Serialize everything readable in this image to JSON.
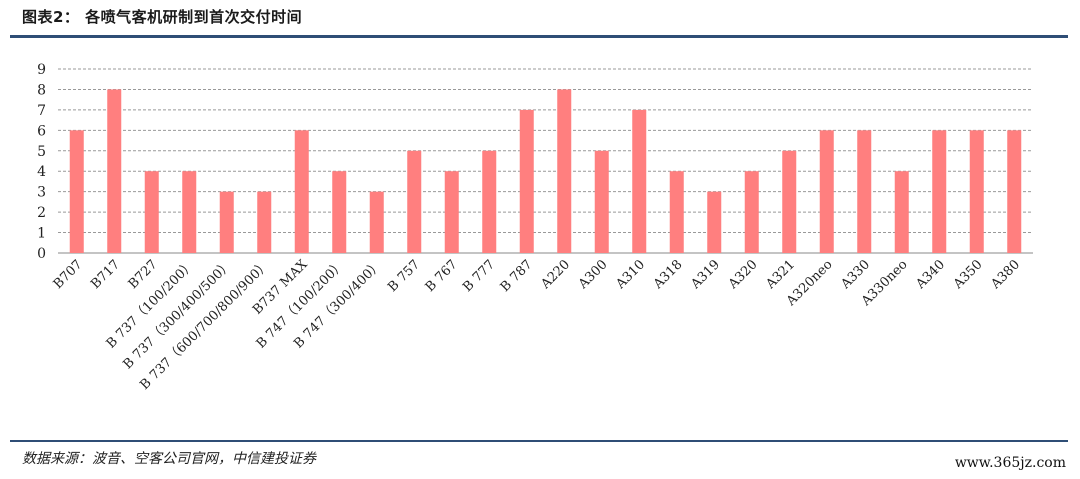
{
  "header": {
    "title": "图表2：  各喷气客机研制到首次交付时间"
  },
  "footer": {
    "source": "数据来源：波音、空客公司官网，中信建投证券",
    "watermark": "www.365jz.com"
  },
  "colors": {
    "bar": "#ff7f7f",
    "rule": "#2f4e76",
    "grid": "#999999",
    "text": "#222222"
  },
  "chart_data": {
    "type": "bar",
    "title": "",
    "xlabel": "",
    "ylabel": "",
    "ylim": [
      0,
      9
    ],
    "yticks": [
      0,
      1,
      2,
      3,
      4,
      5,
      6,
      7,
      8,
      9
    ],
    "grid": true,
    "categories": [
      "B707",
      "B717",
      "B727",
      "B 737（100/200）",
      "B 737（300/400/500）",
      "B 737（600/700/800/900）",
      "B737 MAX",
      "B 747（100/200）",
      "B 747（300/400）",
      "B 757",
      "B 767",
      "B 777",
      "B 787",
      "A220",
      "A300",
      "A310",
      "A318",
      "A319",
      "A320",
      "A321",
      "A320neo",
      "A330",
      "A330neo",
      "A340",
      "A350",
      "A380"
    ],
    "values": [
      6,
      8,
      4,
      4,
      3,
      3,
      6,
      4,
      3,
      5,
      4,
      5,
      7,
      8,
      5,
      7,
      4,
      3,
      4,
      5,
      6,
      6,
      4,
      6,
      6,
      6
    ]
  }
}
